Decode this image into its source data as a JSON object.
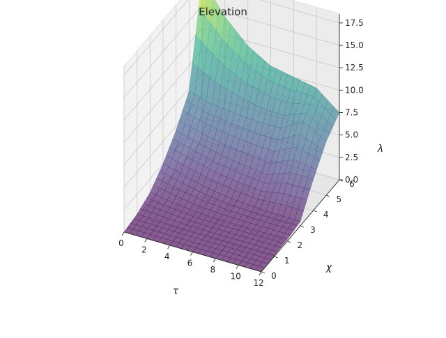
{
  "chart_data": {
    "type": "surface3d",
    "title": "Elevation",
    "xlabel": "τ",
    "ylabel": "χ",
    "zlabel": "λ",
    "x_ticks": [
      0,
      2,
      4,
      6,
      8,
      10,
      12
    ],
    "y_ticks": [
      0,
      1,
      2,
      3,
      4,
      5,
      6
    ],
    "z_ticks": [
      "0.0",
      "2.5",
      "5.0",
      "7.5",
      "10.0",
      "12.5",
      "15.0",
      "17.5"
    ],
    "xlim": [
      0,
      12
    ],
    "ylim": [
      0,
      6
    ],
    "zlim": [
      0,
      18.5
    ],
    "colormap": "viridis",
    "alpha": 0.6,
    "grid": true,
    "x": [
      0,
      2,
      4,
      6,
      8,
      10,
      12
    ],
    "y": [
      0,
      1,
      2,
      3,
      4,
      5,
      6
    ],
    "z": [
      [
        0.0,
        0.3,
        1.0,
        2.5,
        4.5,
        7.2,
        18.0
      ],
      [
        0.0,
        0.2,
        0.6,
        1.8,
        3.8,
        6.5,
        14.5
      ],
      [
        0.0,
        0.1,
        0.3,
        1.2,
        3.2,
        6.2,
        12.0
      ],
      [
        0.0,
        0.1,
        0.2,
        0.8,
        2.8,
        6.0,
        10.5
      ],
      [
        0.0,
        0.1,
        0.2,
        0.6,
        2.5,
        6.0,
        10.0
      ],
      [
        0.0,
        0.1,
        0.2,
        0.5,
        3.5,
        7.5,
        9.5
      ],
      [
        0.0,
        0.1,
        0.2,
        0.5,
        3.5,
        6.0,
        7.5
      ]
    ]
  },
  "colors": {
    "pane_left": "#f2f2f2",
    "pane_back": "#ececec",
    "pane_floor": "#e6e6e6",
    "grid": "#c8c8c8",
    "edge": "#262626"
  }
}
